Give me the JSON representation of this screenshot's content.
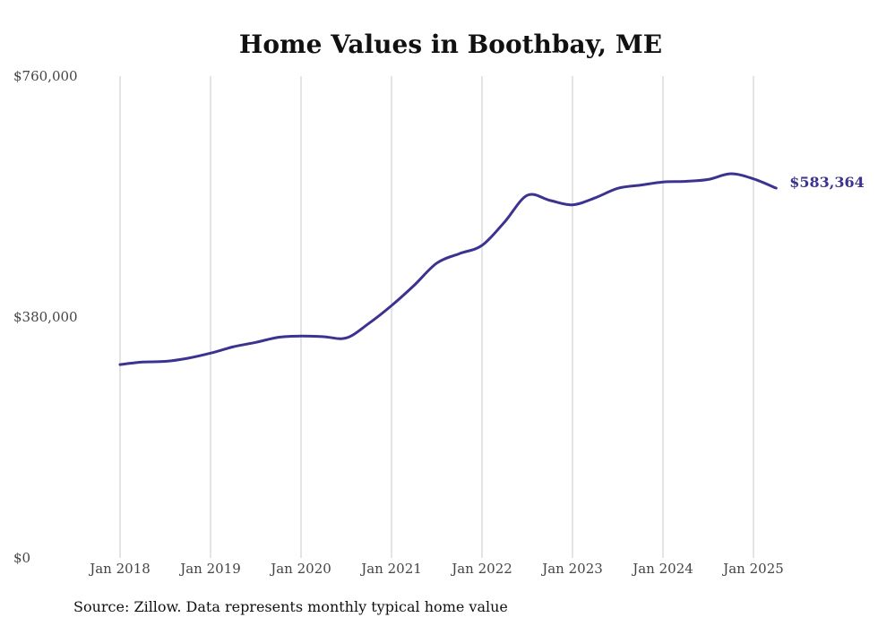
{
  "chart_data": {
    "type": "line",
    "title": "Home Values in Boothbay, ME",
    "source": "Source: Zillow. Data represents monthly typical home value",
    "ylim": [
      0,
      760000
    ],
    "yticks": [
      {
        "value": 0,
        "label": "$0"
      },
      {
        "value": 380000,
        "label": "$380,000"
      },
      {
        "value": 760000,
        "label": "$760,000"
      }
    ],
    "xticks": [
      {
        "value": "2018-01",
        "label": "Jan 2018"
      },
      {
        "value": "2019-01",
        "label": "Jan 2019"
      },
      {
        "value": "2020-01",
        "label": "Jan 2020"
      },
      {
        "value": "2021-01",
        "label": "Jan 2021"
      },
      {
        "value": "2022-01",
        "label": "Jan 2022"
      },
      {
        "value": "2023-01",
        "label": "Jan 2023"
      },
      {
        "value": "2024-01",
        "label": "Jan 2024"
      },
      {
        "value": "2025-01",
        "label": "Jan 2025"
      }
    ],
    "grid": "vertical",
    "line_color": "#3b338f",
    "end_label": "$583,364",
    "series": [
      {
        "points": [
          [
            "2018-01",
            305000
          ],
          [
            "2018-04",
            309000
          ],
          [
            "2018-07",
            310000
          ],
          [
            "2018-10",
            315000
          ],
          [
            "2019-01",
            323000
          ],
          [
            "2019-04",
            333000
          ],
          [
            "2019-07",
            340000
          ],
          [
            "2019-10",
            348000
          ],
          [
            "2020-01",
            350000
          ],
          [
            "2020-04",
            349000
          ],
          [
            "2020-07",
            347000
          ],
          [
            "2020-10",
            370000
          ],
          [
            "2021-01",
            398000
          ],
          [
            "2021-04",
            430000
          ],
          [
            "2021-07",
            465000
          ],
          [
            "2021-10",
            480000
          ],
          [
            "2022-01",
            493000
          ],
          [
            "2022-04",
            530000
          ],
          [
            "2022-07",
            572000
          ],
          [
            "2022-10",
            564000
          ],
          [
            "2023-01",
            557000
          ],
          [
            "2023-04",
            568000
          ],
          [
            "2023-07",
            583000
          ],
          [
            "2023-10",
            588000
          ],
          [
            "2024-01",
            593000
          ],
          [
            "2024-04",
            594000
          ],
          [
            "2024-07",
            597000
          ],
          [
            "2024-10",
            606000
          ],
          [
            "2025-01",
            598000
          ],
          [
            "2025-04",
            583364
          ]
        ]
      }
    ]
  }
}
